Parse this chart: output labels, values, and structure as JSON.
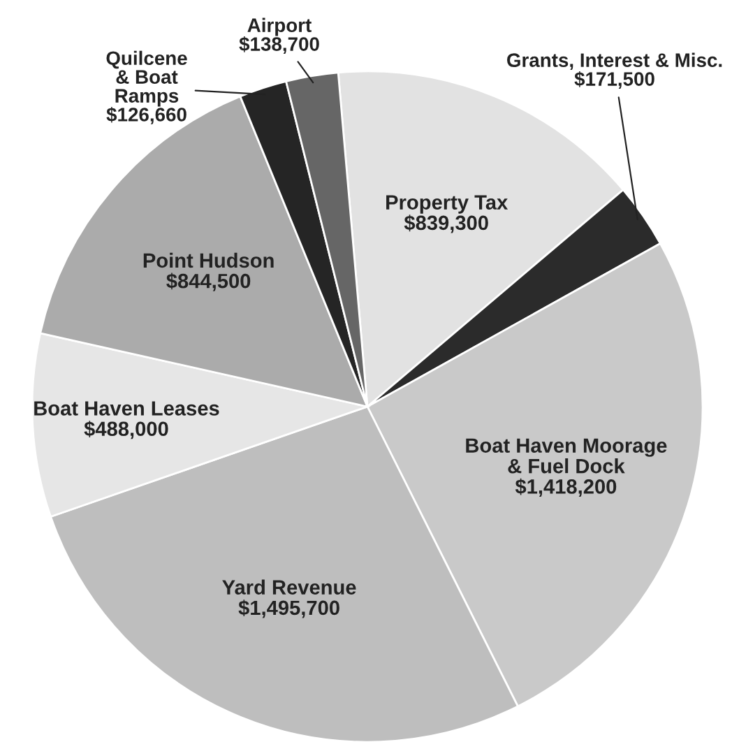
{
  "chart_data": {
    "type": "pie",
    "categories": [
      "Property Tax",
      "Grants, Interest & Misc.",
      "Boat Haven Moorage\n& Fuel Dock",
      "Yard Revenue",
      "Boat Haven Leases",
      "Point Hudson",
      "Quilcene\n& Boat\nRamps",
      "Airport"
    ],
    "values": [
      839300,
      171500,
      1418200,
      1495700,
      488000,
      844500,
      126660,
      138700
    ],
    "value_labels": [
      "$839,300",
      "$171,500",
      "$1,418,200",
      "$1,495,700",
      "$488,000",
      "$844,500",
      "$126,660",
      "$138,700"
    ],
    "colors": [
      "#e2e2e2",
      "#2b2b2b",
      "#c9c9c9",
      "#bebebe",
      "#e6e6e6",
      "#ababab",
      "#252525",
      "#666666"
    ],
    "legend": false
  }
}
